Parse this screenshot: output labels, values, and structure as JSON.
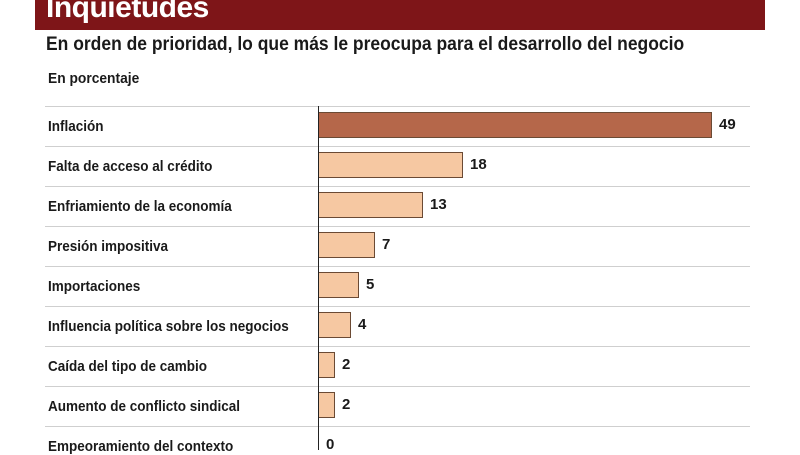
{
  "header": {
    "title": "Inquietudes",
    "subtitle": "En orden de prioridad, lo que más le preocupa para el desarrollo del negocio",
    "units": "En porcentaje"
  },
  "colors": {
    "header_band": "#7e1518",
    "highlight_bar": "#b5674a",
    "bar": "#f6c8a2",
    "bar_border": "#6b4a34"
  },
  "chart_data": {
    "type": "bar",
    "orientation": "horizontal",
    "title": "En orden de prioridad, lo que más le preocupa para el desarrollo del negocio",
    "ylabel": "En porcentaje",
    "categories": [
      "Inflación",
      "Falta de acceso al crédito",
      "Enfriamiento de la economía",
      "Presión impositiva",
      "Importaciones",
      "Influencia política sobre los negocios",
      "Caída del tipo de cambio",
      "Aumento de conflicto sindical",
      "Empeoramiento del contexto"
    ],
    "values": [
      49,
      18,
      13,
      7,
      5,
      4,
      2,
      2,
      0
    ],
    "value_labels": [
      "49",
      "18",
      "13",
      "7",
      "5",
      "4",
      "2",
      "2",
      "0"
    ],
    "highlight_index": 0,
    "xlim": [
      0,
      49
    ]
  }
}
